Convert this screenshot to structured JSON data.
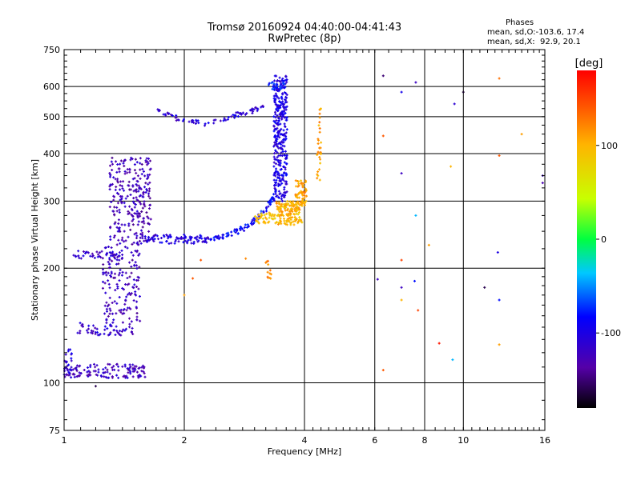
{
  "chart_data": {
    "type": "scatter",
    "title": "Tromsø 20160924 04:40:00-04:41:43",
    "subtitle": "RwPretec (8p)",
    "xlabel": "Frequency [MHz]",
    "ylabel": "Stationary phase Virtual Height [km]",
    "x_scale": "log",
    "y_scale": "log",
    "xlim": [
      1,
      16
    ],
    "ylim": [
      75,
      750
    ],
    "x_ticks": [
      "1",
      "2",
      "4",
      "6",
      "8",
      "10",
      "16"
    ],
    "y_ticks": [
      "75",
      "100",
      "200",
      "300",
      "400",
      "500",
      "600",
      "750"
    ],
    "x_tick_values": [
      1,
      2,
      4,
      6,
      8,
      10,
      16
    ],
    "y_tick_values": [
      75,
      100,
      200,
      300,
      400,
      500,
      600,
      750
    ],
    "grid": true,
    "phases_info": {
      "header": "Phases",
      "line_o": "mean, sd,O:-103.6, 17.4",
      "line_x": "mean, sd,X:  92.9, 20.1"
    },
    "colorbar": {
      "label": "[deg]",
      "min": -180,
      "max": 180,
      "ticks": [
        "100",
        "0",
        "-100"
      ],
      "tick_values": [
        100,
        0,
        -100
      ]
    },
    "clusters": [
      {
        "fmin": 1.0,
        "fmax": 1.6,
        "hmin": 103,
        "hmax": 112,
        "phase": -120,
        "n": 130,
        "shape": "band"
      },
      {
        "fmin": 1.0,
        "fmax": 1.05,
        "hmin": 105,
        "hmax": 125,
        "phase": -105,
        "n": 20,
        "shape": "band"
      },
      {
        "fmin": 1.08,
        "fmax": 1.5,
        "hmin": 133,
        "hmax": 145,
        "phase": -115,
        "n": 60,
        "shape": "band"
      },
      {
        "fmin": 1.25,
        "fmax": 1.55,
        "hmin": 145,
        "hmax": 230,
        "phase": -125,
        "n": 150,
        "shape": "band"
      },
      {
        "fmin": 1.3,
        "fmax": 1.65,
        "hmin": 230,
        "hmax": 390,
        "phase": -125,
        "n": 260,
        "shape": "band"
      },
      {
        "fmin": 1.05,
        "fmax": 1.4,
        "hmin": 212,
        "hmax": 222,
        "phase": -115,
        "n": 40,
        "shape": "band"
      },
      {
        "fmin": 1.55,
        "fmax": 2.3,
        "hmin": 232,
        "hmax": 245,
        "phase": -105,
        "n": 90,
        "shape": "band"
      },
      {
        "f": [
          2.3,
          2.6,
          2.9,
          3.2,
          3.35
        ],
        "h": [
          236,
          245,
          258,
          285,
          310
        ],
        "phase": -85,
        "spread": 0.018,
        "n": 90,
        "shape": "trace"
      },
      {
        "f": [
          1.7,
          2.0,
          2.3,
          2.7,
          3.0,
          3.25
        ],
        "h": [
          525,
          485,
          480,
          505,
          520,
          535
        ],
        "phase": -110,
        "spread": 0.015,
        "n": 80,
        "shape": "trace"
      },
      {
        "fmin": 3.35,
        "fmax": 3.62,
        "hmin": 300,
        "hmax": 640,
        "phase": -100,
        "n": 340,
        "shape": "band"
      },
      {
        "fmin": 3.25,
        "fmax": 3.6,
        "hmin": 590,
        "hmax": 620,
        "phase": -80,
        "n": 20,
        "shape": "band"
      },
      {
        "fmin": 3.0,
        "fmax": 3.4,
        "hmin": 262,
        "hmax": 280,
        "phase": 90,
        "n": 40,
        "shape": "band"
      },
      {
        "fmin": 3.4,
        "fmax": 3.95,
        "hmin": 260,
        "hmax": 300,
        "phase": 100,
        "n": 150,
        "shape": "band"
      },
      {
        "fmin": 3.8,
        "fmax": 4.05,
        "hmin": 290,
        "hmax": 340,
        "phase": 110,
        "n": 60,
        "shape": "band"
      },
      {
        "fmin": 4.3,
        "fmax": 4.4,
        "hmin": 340,
        "hmax": 525,
        "phase": 110,
        "n": 30,
        "shape": "band"
      },
      {
        "fmin": 3.2,
        "fmax": 3.3,
        "hmin": 185,
        "hmax": 210,
        "phase": 120,
        "n": 12,
        "shape": "band"
      }
    ],
    "scatter_points": [
      {
        "x": 6.3,
        "y": 640,
        "phase": -150
      },
      {
        "x": 7.6,
        "y": 615,
        "phase": -120
      },
      {
        "x": 7.0,
        "y": 580,
        "phase": -95
      },
      {
        "x": 10.0,
        "y": 580,
        "phase": -170
      },
      {
        "x": 12.3,
        "y": 630,
        "phase": 130
      },
      {
        "x": 9.5,
        "y": 540,
        "phase": -110
      },
      {
        "x": 6.3,
        "y": 445,
        "phase": 140
      },
      {
        "x": 14.0,
        "y": 450,
        "phase": 110
      },
      {
        "x": 12.3,
        "y": 395,
        "phase": 140
      },
      {
        "x": 9.3,
        "y": 370,
        "phase": 100
      },
      {
        "x": 7.0,
        "y": 355,
        "phase": -120
      },
      {
        "x": 15.8,
        "y": 350,
        "phase": -120
      },
      {
        "x": 15.8,
        "y": 335,
        "phase": -130
      },
      {
        "x": 7.6,
        "y": 275,
        "phase": -40
      },
      {
        "x": 8.2,
        "y": 230,
        "phase": 110
      },
      {
        "x": 12.2,
        "y": 220,
        "phase": -100
      },
      {
        "x": 7.0,
        "y": 210,
        "phase": 150
      },
      {
        "x": 2.2,
        "y": 210,
        "phase": 140
      },
      {
        "x": 2.85,
        "y": 212,
        "phase": 120
      },
      {
        "x": 2.1,
        "y": 188,
        "phase": 140
      },
      {
        "x": 6.1,
        "y": 187,
        "phase": -120
      },
      {
        "x": 7.55,
        "y": 185,
        "phase": -80
      },
      {
        "x": 7.0,
        "y": 178,
        "phase": -120
      },
      {
        "x": 11.3,
        "y": 178,
        "phase": -160
      },
      {
        "x": 2.0,
        "y": 170,
        "phase": 110
      },
      {
        "x": 7.0,
        "y": 165,
        "phase": 100
      },
      {
        "x": 12.3,
        "y": 165,
        "phase": -80
      },
      {
        "x": 7.7,
        "y": 155,
        "phase": 150
      },
      {
        "x": 8.7,
        "y": 127,
        "phase": 170
      },
      {
        "x": 12.3,
        "y": 126,
        "phase": 110
      },
      {
        "x": 9.4,
        "y": 115,
        "phase": -40
      },
      {
        "x": 6.3,
        "y": 108,
        "phase": 140
      },
      {
        "x": 1.2,
        "y": 98,
        "phase": -160
      }
    ]
  }
}
